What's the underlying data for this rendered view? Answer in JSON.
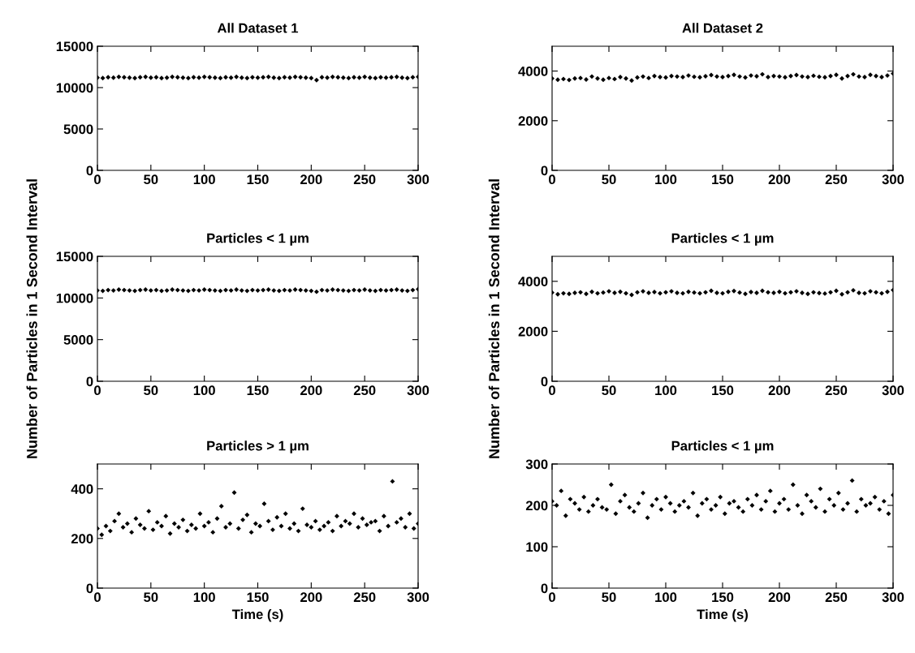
{
  "chart_data": [
    {
      "type": "scatter",
      "title": "All Dataset 1",
      "marker": "diamond",
      "xlim": [
        0,
        300
      ],
      "xticks": [
        0,
        50,
        100,
        150,
        200,
        250,
        300
      ],
      "ylim": [
        0,
        15000
      ],
      "yticks": [
        0,
        5000,
        10000,
        15000
      ],
      "x": [
        0,
        5,
        10,
        15,
        20,
        25,
        30,
        35,
        40,
        45,
        50,
        55,
        60,
        65,
        70,
        75,
        80,
        85,
        90,
        95,
        100,
        105,
        110,
        115,
        120,
        125,
        130,
        135,
        140,
        145,
        150,
        155,
        160,
        165,
        170,
        175,
        180,
        185,
        190,
        195,
        200,
        205,
        210,
        215,
        220,
        225,
        230,
        235,
        240,
        245,
        250,
        255,
        260,
        265,
        270,
        275,
        280,
        285,
        290,
        295,
        300
      ],
      "series": [
        {
          "color": "#000000",
          "values": [
            11200,
            11150,
            11250,
            11200,
            11300,
            11250,
            11200,
            11150,
            11250,
            11300,
            11200,
            11250,
            11150,
            11200,
            11300,
            11250,
            11200,
            11150,
            11250,
            11200,
            11300,
            11250,
            11200,
            11150,
            11250,
            11200,
            11300,
            11200,
            11150,
            11250,
            11200,
            11250,
            11300,
            11200,
            11150,
            11250,
            11200,
            11300,
            11250,
            11200,
            11150,
            10900,
            11250,
            11200,
            11300,
            11250,
            11200,
            11150,
            11250,
            11200,
            11300,
            11200,
            11150,
            11250,
            11200,
            11250,
            11300,
            11200,
            11150,
            11250,
            11300
          ]
        }
      ]
    },
    {
      "type": "scatter",
      "title": "All Dataset 2",
      "marker": "diamond",
      "xlim": [
        0,
        300
      ],
      "xticks": [
        0,
        50,
        100,
        150,
        200,
        250,
        300
      ],
      "ylim": [
        0,
        5000
      ],
      "yticks": [
        0,
        2000,
        4000
      ],
      "x": [
        0,
        5,
        10,
        15,
        20,
        25,
        30,
        35,
        40,
        45,
        50,
        55,
        60,
        65,
        70,
        75,
        80,
        85,
        90,
        95,
        100,
        105,
        110,
        115,
        120,
        125,
        130,
        135,
        140,
        145,
        150,
        155,
        160,
        165,
        170,
        175,
        180,
        185,
        190,
        195,
        200,
        205,
        210,
        215,
        220,
        225,
        230,
        235,
        240,
        245,
        250,
        255,
        260,
        265,
        270,
        275,
        280,
        285,
        290,
        295,
        300
      ],
      "series": [
        {
          "color": "#000000",
          "values": [
            3700,
            3650,
            3680,
            3640,
            3700,
            3720,
            3660,
            3780,
            3700,
            3650,
            3720,
            3680,
            3760,
            3700,
            3620,
            3740,
            3780,
            3720,
            3800,
            3760,
            3740,
            3800,
            3780,
            3760,
            3820,
            3770,
            3750,
            3790,
            3840,
            3780,
            3760,
            3800,
            3850,
            3780,
            3740,
            3820,
            3790,
            3870,
            3760,
            3800,
            3780,
            3750,
            3800,
            3840,
            3780,
            3760,
            3810,
            3770,
            3750,
            3800,
            3850,
            3700,
            3800,
            3870,
            3780,
            3760,
            3850,
            3800,
            3760,
            3820,
            3900
          ]
        }
      ]
    },
    {
      "type": "scatter",
      "title": "Particles < 1 µm",
      "ylabel": "Number of Particles in 1 Second Interval",
      "marker": "diamond",
      "xlim": [
        0,
        300
      ],
      "xticks": [
        0,
        50,
        100,
        150,
        200,
        250,
        300
      ],
      "ylim": [
        0,
        15000
      ],
      "yticks": [
        0,
        5000,
        10000,
        15000
      ],
      "x": [
        0,
        5,
        10,
        15,
        20,
        25,
        30,
        35,
        40,
        45,
        50,
        55,
        60,
        65,
        70,
        75,
        80,
        85,
        90,
        95,
        100,
        105,
        110,
        115,
        120,
        125,
        130,
        135,
        140,
        145,
        150,
        155,
        160,
        165,
        170,
        175,
        180,
        185,
        190,
        195,
        200,
        205,
        210,
        215,
        220,
        225,
        230,
        235,
        240,
        245,
        250,
        255,
        260,
        265,
        270,
        275,
        280,
        285,
        290,
        295,
        300
      ],
      "series": [
        {
          "color": "#000000",
          "values": [
            10900,
            10850,
            10950,
            10900,
            11000,
            10950,
            10900,
            10850,
            10950,
            11000,
            10900,
            10950,
            10850,
            10900,
            11000,
            10950,
            10900,
            10850,
            10950,
            10900,
            11000,
            10950,
            10900,
            10850,
            10950,
            10900,
            11000,
            10900,
            10850,
            10950,
            10900,
            10950,
            11000,
            10900,
            10850,
            10950,
            10900,
            11000,
            10950,
            10900,
            10850,
            10750,
            10950,
            10900,
            11000,
            10950,
            10900,
            10850,
            10950,
            10900,
            11000,
            10900,
            10850,
            10950,
            10900,
            10950,
            11000,
            10900,
            10850,
            10950,
            11050
          ]
        }
      ]
    },
    {
      "type": "scatter",
      "title": "Particles < 1 µm",
      "ylabel": "Number of Particles in 1 Second Interval",
      "marker": "diamond",
      "xlim": [
        0,
        300
      ],
      "xticks": [
        0,
        50,
        100,
        150,
        200,
        250,
        300
      ],
      "ylim": [
        0,
        5000
      ],
      "yticks": [
        0,
        2000,
        4000
      ],
      "x": [
        0,
        5,
        10,
        15,
        20,
        25,
        30,
        35,
        40,
        45,
        50,
        55,
        60,
        65,
        70,
        75,
        80,
        85,
        90,
        95,
        100,
        105,
        110,
        115,
        120,
        125,
        130,
        135,
        140,
        145,
        150,
        155,
        160,
        165,
        170,
        175,
        180,
        185,
        190,
        195,
        200,
        205,
        210,
        215,
        220,
        225,
        230,
        235,
        240,
        245,
        250,
        255,
        260,
        265,
        270,
        275,
        280,
        285,
        290,
        295,
        300
      ],
      "series": [
        {
          "color": "#000000",
          "values": [
            3550,
            3480,
            3520,
            3500,
            3540,
            3560,
            3500,
            3580,
            3520,
            3550,
            3600,
            3540,
            3580,
            3520,
            3460,
            3560,
            3600,
            3540,
            3570,
            3520,
            3560,
            3600,
            3540,
            3520,
            3580,
            3550,
            3520,
            3560,
            3620,
            3540,
            3520,
            3580,
            3610,
            3550,
            3500,
            3570,
            3540,
            3620,
            3560,
            3540,
            3580,
            3520,
            3560,
            3600,
            3540,
            3500,
            3560,
            3530,
            3510,
            3560,
            3620,
            3480,
            3560,
            3640,
            3540,
            3520,
            3600,
            3560,
            3520,
            3580,
            3650
          ]
        }
      ]
    },
    {
      "type": "scatter",
      "title": "Particles > 1 µm",
      "xlabel": "Time (s)",
      "marker": "diamond",
      "xlim": [
        0,
        300
      ],
      "xticks": [
        0,
        50,
        100,
        150,
        200,
        250,
        300
      ],
      "ylim": [
        0,
        500
      ],
      "yticks": [
        0,
        200,
        400
      ],
      "x": [
        0,
        4,
        8,
        12,
        16,
        20,
        24,
        28,
        32,
        36,
        40,
        44,
        48,
        52,
        56,
        60,
        64,
        68,
        72,
        76,
        80,
        84,
        88,
        92,
        96,
        100,
        104,
        108,
        112,
        116,
        120,
        124,
        128,
        132,
        136,
        140,
        144,
        148,
        152,
        156,
        160,
        164,
        168,
        172,
        176,
        180,
        184,
        188,
        192,
        196,
        200,
        204,
        208,
        212,
        216,
        220,
        224,
        228,
        232,
        236,
        240,
        244,
        248,
        252,
        256,
        260,
        264,
        268,
        272,
        276,
        280,
        284,
        288,
        292,
        296,
        300
      ],
      "series": [
        {
          "color": "#000000",
          "values": [
            240,
            215,
            250,
            230,
            270,
            300,
            245,
            260,
            225,
            280,
            255,
            240,
            310,
            235,
            265,
            250,
            290,
            220,
            260,
            245,
            275,
            230,
            255,
            240,
            300,
            250,
            265,
            225,
            280,
            330,
            245,
            260,
            385,
            240,
            275,
            295,
            225,
            260,
            250,
            340,
            270,
            235,
            285,
            250,
            300,
            240,
            260,
            230,
            320,
            255,
            245,
            270,
            235,
            250,
            265,
            230,
            290,
            250,
            270,
            260,
            300,
            245,
            280,
            255,
            265,
            270,
            230,
            290,
            250,
            430,
            265,
            280,
            245,
            300,
            240,
            260
          ]
        }
      ]
    },
    {
      "type": "scatter",
      "title": "Particles < 1 µm",
      "xlabel": "Time (s)",
      "marker": "diamond",
      "xlim": [
        0,
        300
      ],
      "xticks": [
        0,
        50,
        100,
        150,
        200,
        250,
        300
      ],
      "ylim": [
        0,
        300
      ],
      "yticks": [
        0,
        100,
        200,
        300
      ],
      "x": [
        0,
        4,
        8,
        12,
        16,
        20,
        24,
        28,
        32,
        36,
        40,
        44,
        48,
        52,
        56,
        60,
        64,
        68,
        72,
        76,
        80,
        84,
        88,
        92,
        96,
        100,
        104,
        108,
        112,
        116,
        120,
        124,
        128,
        132,
        136,
        140,
        144,
        148,
        152,
        156,
        160,
        164,
        168,
        172,
        176,
        180,
        184,
        188,
        192,
        196,
        200,
        204,
        208,
        212,
        216,
        220,
        224,
        228,
        232,
        236,
        240,
        244,
        248,
        252,
        256,
        260,
        264,
        268,
        272,
        276,
        280,
        284,
        288,
        292,
        296,
        300
      ],
      "series": [
        {
          "color": "#000000",
          "values": [
            210,
            200,
            235,
            175,
            215,
            205,
            190,
            220,
            185,
            200,
            215,
            195,
            190,
            250,
            180,
            210,
            225,
            195,
            185,
            205,
            230,
            170,
            200,
            215,
            190,
            220,
            205,
            185,
            200,
            210,
            195,
            230,
            175,
            205,
            215,
            190,
            200,
            220,
            180,
            205,
            210,
            195,
            185,
            215,
            200,
            225,
            190,
            210,
            235,
            185,
            205,
            215,
            190,
            250,
            200,
            180,
            225,
            210,
            195,
            240,
            185,
            215,
            200,
            230,
            190,
            205,
            260,
            185,
            215,
            200,
            205,
            220,
            190,
            210,
            180,
            225
          ]
        }
      ]
    }
  ]
}
